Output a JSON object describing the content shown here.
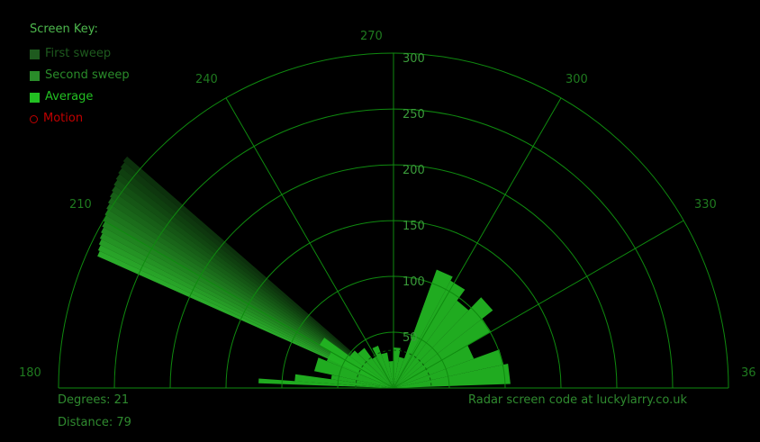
{
  "key": {
    "title": "Screen Key:",
    "items": [
      {
        "label": "First sweep",
        "color": "#1e5a1e"
      },
      {
        "label": "Second sweep",
        "color": "#2a8c2a"
      },
      {
        "label": "Average",
        "color": "#22c022"
      },
      {
        "label": "Motion",
        "color": "#c00000"
      }
    ]
  },
  "angle_labels": [
    "180",
    "210",
    "240",
    "270",
    "300",
    "330",
    "36"
  ],
  "distance_labels": [
    "50",
    "100",
    "150",
    "200",
    "250",
    "300"
  ],
  "readout": {
    "degrees_label": "Degrees:",
    "degrees_value": "21",
    "distance_label": "Distance:",
    "distance_value": "79"
  },
  "credit": "Radar screen code at luckylarry.co.uk",
  "colors": {
    "grid": "#0f8a0f",
    "text": "#2f8a2f",
    "background": "#000000"
  }
}
